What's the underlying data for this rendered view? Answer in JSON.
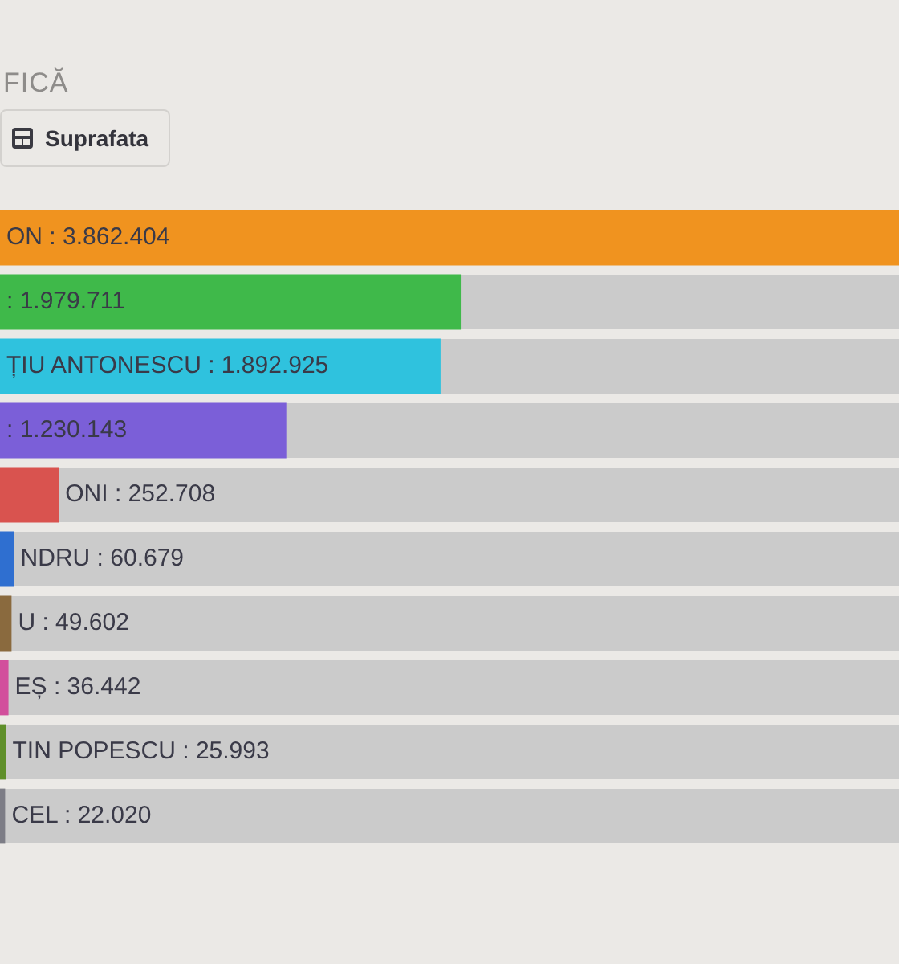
{
  "chart_data": {
    "type": "bar",
    "orientation": "horizontal",
    "title": "FICĂ",
    "annotations": [
      "Suprafata"
    ],
    "categories": [
      null,
      null,
      null,
      null,
      null,
      null,
      null,
      null,
      null,
      null
    ],
    "values": [
      3862404,
      1979711,
      1892925,
      1230143,
      252708,
      60679,
      49602,
      36442,
      25993,
      22020
    ],
    "colors": [
      "#f0931f",
      "#3fb94a",
      "#2fc2de",
      "#7b5fd8",
      "#d9534f",
      "#2f6fd0",
      "#8a6a3e",
      "#d24f9c",
      "#5f8f2a",
      "#7d7d86"
    ],
    "value_labels": [
      "ON : 3.862.404",
      ": 1.979.711",
      "ȚIU ANTONESCU : 1.892.925",
      ": 1.230.143",
      "ONI : 252.708",
      "NDRU : 60.679",
      "U : 49.602",
      "EȘ : 36.442",
      "TIN POPESCU : 25.993",
      "CEL : 22.020"
    ],
    "xlim": [
      0,
      3862404
    ],
    "tick_labels": false
  }
}
